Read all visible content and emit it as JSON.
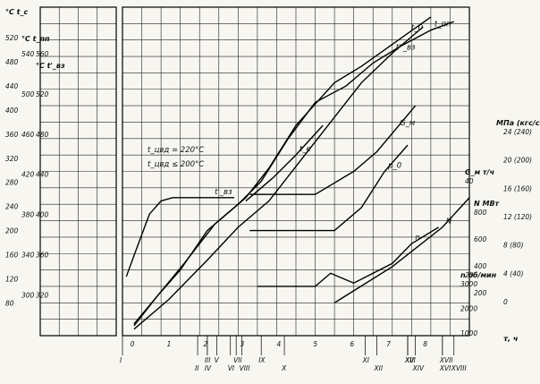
{
  "chart_data": {
    "type": "line",
    "x_axis": {
      "unit": "τ, ч",
      "ticks": [
        "0",
        "1",
        "2",
        "3",
        "4",
        "5",
        "6",
        "7",
        "8"
      ],
      "time_marks": [
        {
          "label": "I",
          "x": 0.0
        },
        {
          "label": "II",
          "x": 1.95
        },
        {
          "label": "III",
          "x": 2.2
        },
        {
          "label": "IV",
          "x": 2.2
        },
        {
          "label": "V",
          "x": 2.45
        },
        {
          "label": "VI",
          "x": 2.8
        },
        {
          "label": "VII",
          "x": 2.95
        },
        {
          "label": "VIII",
          "x": 3.1
        },
        {
          "label": "IX",
          "x": 3.6
        },
        {
          "label": "X",
          "x": 4.2
        },
        {
          "label": "XI",
          "x": 6.3
        },
        {
          "label": "XII",
          "x": 6.6
        },
        {
          "label": "XIII",
          "x": 7.4
        },
        {
          "label": "XIV",
          "x": 7.6
        },
        {
          "label": "XV",
          "x": 7.4
        },
        {
          "label": "XVI",
          "x": 8.3
        },
        {
          "label": "XVII",
          "x": 8.3
        },
        {
          "label": "XVIII",
          "x": 8.6
        }
      ]
    },
    "left_axes": [
      {
        "name": "t_c",
        "header": "°C  t_c",
        "ticks": [
          80,
          120,
          160,
          200,
          240,
          280,
          320,
          360,
          400,
          440,
          480,
          520
        ]
      },
      {
        "name": "t_пп",
        "header": "°C t_пп",
        "ticks": [
          300,
          340,
          380,
          420,
          460,
          500,
          540
        ]
      },
      {
        "name": "t'_вз",
        "header": "°C t'_вз",
        "ticks": [
          320,
          360,
          400,
          440,
          480,
          520,
          560
        ]
      }
    ],
    "right_axes": [
      {
        "name": "p_0",
        "header": "МПа (кгс/см²)",
        "ticks": [
          "0",
          "4 (40)",
          "8 (80)",
          "12 (120)",
          "16 (160)",
          "20 (200)",
          "24 (240)"
        ]
      },
      {
        "name": "N",
        "header": "N  МВт",
        "ticks": [
          200,
          400,
          600,
          800
        ]
      },
      {
        "name": "G_м",
        "header": "G_м т/ч",
        "ticks": [
          20,
          40
        ]
      },
      {
        "name": "n",
        "header": "n об/мин",
        "ticks": [
          1000,
          2000,
          3000
        ]
      }
    ],
    "series": [
      {
        "name": "t_0",
        "points": [
          [
            0.3,
            18
          ],
          [
            0.9,
            60
          ],
          [
            1.6,
            110
          ],
          [
            2.4,
            170
          ],
          [
            3.2,
            210
          ],
          [
            3.8,
            255
          ],
          [
            4.5,
            320
          ],
          [
            5.5,
            385
          ],
          [
            6.2,
            410
          ],
          [
            6.8,
            435
          ],
          [
            7.4,
            460
          ],
          [
            8.0,
            485
          ]
        ]
      },
      {
        "name": "t_пп",
        "points": [
          [
            0.3,
            15
          ],
          [
            0.9,
            60
          ],
          [
            1.5,
            100
          ],
          [
            2.2,
            160
          ],
          [
            3.0,
            200
          ],
          [
            3.6,
            235
          ],
          [
            4.3,
            300
          ],
          [
            5.0,
            355
          ],
          [
            5.8,
            380
          ],
          [
            6.5,
            415
          ],
          [
            7.2,
            440
          ],
          [
            8.0,
            465
          ],
          [
            8.6,
            478
          ]
        ]
      },
      {
        "name": "t''_вз",
        "points": [
          [
            0.3,
            10
          ],
          [
            1.2,
            55
          ],
          [
            2.2,
            115
          ],
          [
            3.0,
            165
          ],
          [
            3.8,
            205
          ],
          [
            4.6,
            265
          ],
          [
            5.4,
            325
          ],
          [
            6.2,
            385
          ],
          [
            7.0,
            430
          ],
          [
            7.8,
            470
          ]
        ]
      },
      {
        "name": "t_e",
        "points": [
          [
            3.2,
            205
          ],
          [
            3.9,
            240
          ],
          [
            4.5,
            275
          ],
          [
            5.2,
            320
          ]
        ]
      },
      {
        "name": "t'_вз",
        "points": [
          [
            0.1,
            90
          ],
          [
            0.35,
            130
          ],
          [
            0.7,
            185
          ],
          [
            1.0,
            205
          ],
          [
            1.3,
            210
          ],
          [
            1.8,
            210
          ],
          [
            2.3,
            210
          ],
          [
            2.9,
            210
          ]
        ]
      },
      {
        "name": "G_м",
        "points": [
          [
            3.3,
            215
          ],
          [
            5.0,
            215
          ],
          [
            6.0,
            250
          ],
          [
            6.6,
            280
          ],
          [
            7.1,
            315
          ],
          [
            7.6,
            350
          ]
        ]
      },
      {
        "name": "N",
        "points": [
          [
            5.5,
            50
          ],
          [
            7.0,
            105
          ],
          [
            8.3,
            165
          ],
          [
            9.0,
            210
          ]
        ]
      },
      {
        "name": "p_0",
        "points": [
          [
            3.3,
            160
          ],
          [
            5.5,
            160
          ],
          [
            6.2,
            195
          ],
          [
            6.8,
            250
          ],
          [
            7.4,
            290
          ]
        ]
      },
      {
        "name": "n",
        "points": [
          [
            3.5,
            75
          ],
          [
            5.0,
            75
          ],
          [
            5.4,
            95
          ],
          [
            6.0,
            80
          ],
          [
            7.0,
            110
          ],
          [
            7.5,
            140
          ],
          [
            8.2,
            165
          ]
        ]
      }
    ],
    "annotations": [
      {
        "text": "t_цвд = 220°C"
      },
      {
        "text": "t_цвд ≤ 200°C"
      },
      {
        "text": "t_0"
      },
      {
        "text": "t_пп"
      },
      {
        "text": "t_e"
      },
      {
        "text": "t''_вз"
      },
      {
        "text": "t'_вз"
      },
      {
        "text": "G_м"
      },
      {
        "text": "N"
      },
      {
        "text": "p_0"
      },
      {
        "text": "n"
      }
    ],
    "grid": true,
    "legend": "none"
  }
}
